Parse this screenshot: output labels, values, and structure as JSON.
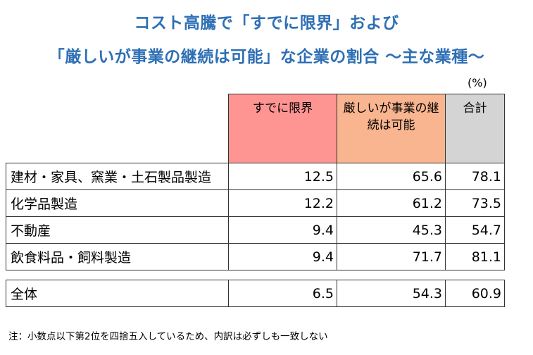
{
  "chart_data": {
    "type": "table",
    "title": "コスト高騰で「すでに限界」および",
    "subtitle": "「厳しいが事業の継続は可能」な企業の割合 ～主な業種～",
    "unit": "(%)",
    "columns": [
      "すでに限界",
      "厳しいが事業の継続は可能",
      "合計"
    ],
    "column_colors": [
      "#ff9593",
      "#f8b58f",
      "#d4d4d4"
    ],
    "rows": [
      {
        "label": "建材・家具、窯業・土石製品製造",
        "values": [
          "12.5",
          "65.6",
          "78.1"
        ]
      },
      {
        "label": "化学品製造",
        "values": [
          "12.2",
          "61.2",
          "73.5"
        ]
      },
      {
        "label": "不動産",
        "values": [
          "9.4",
          "45.3",
          "54.7"
        ]
      },
      {
        "label": "飲食料品・飼料製造",
        "values": [
          "9.4",
          "71.7",
          "81.1"
        ]
      }
    ],
    "total": {
      "label": "全体",
      "values": [
        "6.5",
        "54.3",
        "60.9"
      ]
    },
    "note": "注：小数点以下第2位を四捨五入しているため、内訳は必ずしも一致しない"
  }
}
